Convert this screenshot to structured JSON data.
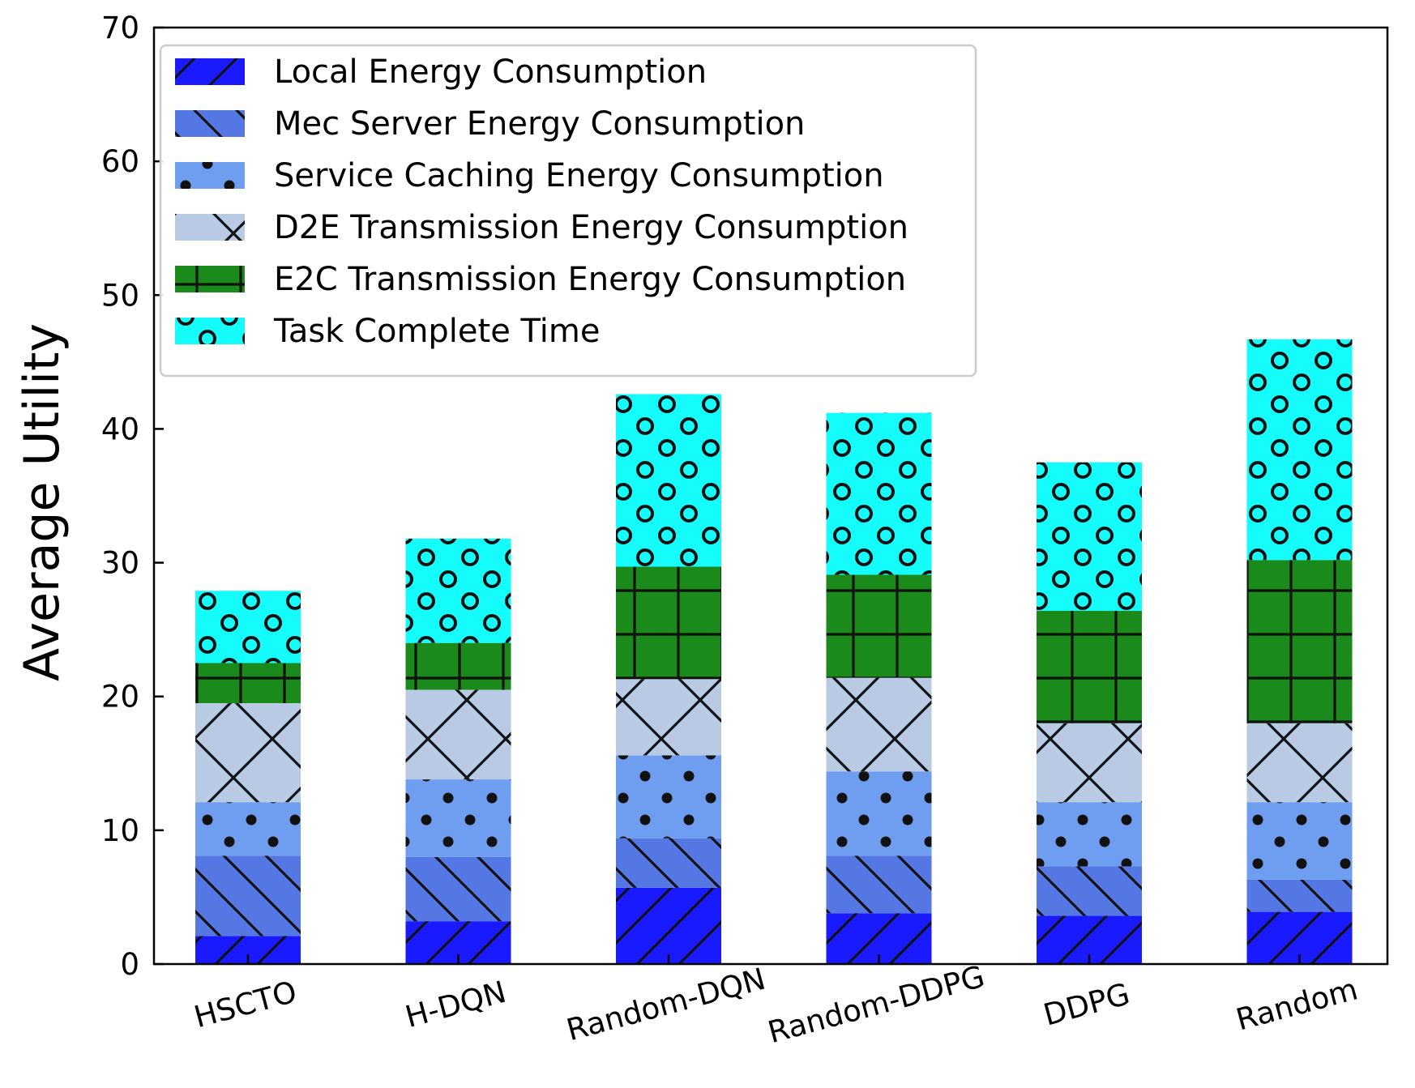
{
  "chart_data": {
    "type": "bar",
    "stacked": true,
    "title": "",
    "xlabel": "",
    "ylabel": "Average Utility",
    "ylim": [
      0,
      70
    ],
    "yticks": [
      0,
      10,
      20,
      30,
      40,
      50,
      60,
      70
    ],
    "legend_position": "top-left",
    "categories": [
      "HSCTO",
      "H-DQN",
      "Random-DQN",
      "Random-DDPG",
      "DDPG",
      "Random"
    ],
    "series": [
      {
        "name": "Local Energy Consumption",
        "color": "#1a1aff",
        "hatch": "forward-slash",
        "values": [
          2.1,
          3.2,
          5.7,
          3.8,
          3.6,
          3.9
        ]
      },
      {
        "name": "Mec Server Energy Consumption",
        "color": "#5577e3",
        "hatch": "back-slash",
        "values": [
          6.0,
          4.8,
          3.7,
          4.3,
          3.7,
          2.4
        ]
      },
      {
        "name": "Service Caching Energy Consumption",
        "color": "#6f9ef0",
        "hatch": "dots",
        "values": [
          4.0,
          5.8,
          6.2,
          6.3,
          4.8,
          5.8
        ]
      },
      {
        "name": "D2E Transmission Energy Consumption",
        "color": "#b9cbe4",
        "hatch": "cross-x",
        "values": [
          7.4,
          6.7,
          5.7,
          7.0,
          5.9,
          5.9
        ]
      },
      {
        "name": "E2C Transmission Energy Consumption",
        "color": "#1a8a1a",
        "hatch": "grid-plus",
        "values": [
          3.0,
          3.5,
          8.4,
          7.7,
          8.4,
          12.2
        ]
      },
      {
        "name": "Task Complete Time",
        "color": "#14fcfc",
        "hatch": "circles",
        "values": [
          5.4,
          7.8,
          12.9,
          12.1,
          11.1,
          16.5
        ]
      }
    ]
  }
}
